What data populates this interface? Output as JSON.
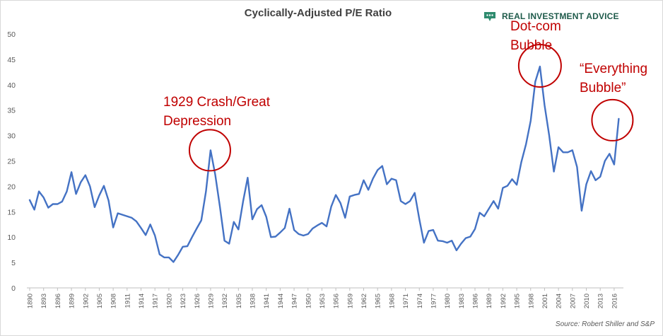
{
  "header": {
    "title": "Cyclically-Adjusted P/E Ratio",
    "brand": "REAL INVESTMENT ADVICE",
    "brand_color": "#1e5a4a"
  },
  "source_note": "Source: Robert Shiller and S&P",
  "chart_data": {
    "type": "line",
    "title": "Cyclically-Adjusted P/E Ratio",
    "xlabel": "",
    "ylabel": "",
    "ylim": [
      0,
      50
    ],
    "yticks": [
      0,
      5,
      10,
      15,
      20,
      25,
      30,
      35,
      40,
      45,
      50
    ],
    "xlim": [
      1890,
      2018
    ],
    "xticks": [
      1890,
      1893,
      1896,
      1899,
      1902,
      1905,
      1908,
      1911,
      1914,
      1917,
      1920,
      1923,
      1926,
      1929,
      1932,
      1935,
      1938,
      1941,
      1944,
      1947,
      1950,
      1953,
      1956,
      1959,
      1962,
      1965,
      1968,
      1971,
      1974,
      1977,
      1980,
      1983,
      1986,
      1989,
      1992,
      1995,
      1998,
      2001,
      2004,
      2007,
      2010,
      2013,
      2016
    ],
    "grid": false,
    "line_color": "#4472c4",
    "series": [
      {
        "x": [
          1890,
          1891,
          1892,
          1893,
          1894,
          1895,
          1896,
          1897,
          1898,
          1899,
          1900,
          1901,
          1902,
          1903,
          1904,
          1905,
          1906,
          1907,
          1908,
          1909,
          1910,
          1911,
          1912,
          1913,
          1914,
          1915,
          1916,
          1917,
          1918,
          1919,
          1920,
          1921,
          1922,
          1923,
          1924,
          1925,
          1926,
          1927,
          1928,
          1929,
          1930,
          1931,
          1932,
          1933,
          1934,
          1935,
          1936,
          1937,
          1938,
          1939,
          1940,
          1941,
          1942,
          1943,
          1944,
          1945,
          1946,
          1947,
          1948,
          1949,
          1950,
          1951,
          1952,
          1953,
          1954,
          1955,
          1956,
          1957,
          1958,
          1959,
          1960,
          1961,
          1962,
          1963,
          1964,
          1965,
          1966,
          1967,
          1968,
          1969,
          1970,
          1971,
          1972,
          1973,
          1974,
          1975,
          1976,
          1977,
          1978,
          1979,
          1980,
          1981,
          1982,
          1983,
          1984,
          1985,
          1986,
          1987,
          1988,
          1989,
          1990,
          1991,
          1992,
          1993,
          1994,
          1995,
          1996,
          1997,
          1998,
          1999,
          2000,
          2001,
          2002,
          2003,
          2004,
          2005,
          2006,
          2007,
          2008,
          2009,
          2010,
          2011,
          2012,
          2013,
          2014,
          2015,
          2016,
          2017
        ],
        "values": [
          17.3,
          15.4,
          19.0,
          17.8,
          15.8,
          16.5,
          16.5,
          17.0,
          19.0,
          22.8,
          18.5,
          20.8,
          22.2,
          20.0,
          15.9,
          18.2,
          20.1,
          17.2,
          11.9,
          14.7,
          14.4,
          14.1,
          13.8,
          13.1,
          11.8,
          10.4,
          12.5,
          10.3,
          6.6,
          6.0,
          6.0,
          5.1,
          6.5,
          8.1,
          8.2,
          10.0,
          11.7,
          13.3,
          19.0,
          27.1,
          22.3,
          16.0,
          9.3,
          8.7,
          13.0,
          11.5,
          17.0,
          21.7,
          13.5,
          15.5,
          16.3,
          14.0,
          10.0,
          10.1,
          10.9,
          11.8,
          15.6,
          11.4,
          10.6,
          10.3,
          10.6,
          11.7,
          12.3,
          12.8,
          12.1,
          16.0,
          18.3,
          16.7,
          13.8,
          18.0,
          18.3,
          18.5,
          21.2,
          19.3,
          21.5,
          23.2,
          24.0,
          20.4,
          21.5,
          21.2,
          17.1,
          16.5,
          17.1,
          18.7,
          13.5,
          8.9,
          11.2,
          11.4,
          9.3,
          9.2,
          8.9,
          9.3,
          7.4,
          8.7,
          9.8,
          10.1,
          11.6,
          14.8,
          14.1,
          15.6,
          17.1,
          15.6,
          19.7,
          20.1,
          21.4,
          20.3,
          24.8,
          28.3,
          32.9,
          40.6,
          43.6,
          36.0,
          30.0,
          22.9,
          27.7,
          26.7,
          26.7,
          27.1,
          23.8,
          15.2,
          20.4,
          23.0,
          21.2,
          21.9,
          25.0,
          26.4,
          24.3,
          33.3
        ]
      }
    ],
    "annotations": [
      {
        "text_lines": [
          "1929 Crash/Great",
          "Depression"
        ],
        "x": 1929,
        "y": 27.1
      },
      {
        "text_lines": [
          "Dot-com",
          "Bubble"
        ],
        "x": 2000,
        "y": 43.6
      },
      {
        "text_lines": [
          "“Everything",
          "Bubble”"
        ],
        "x": 2017,
        "y": 33.3
      }
    ],
    "annotation_color": "#c00000"
  }
}
